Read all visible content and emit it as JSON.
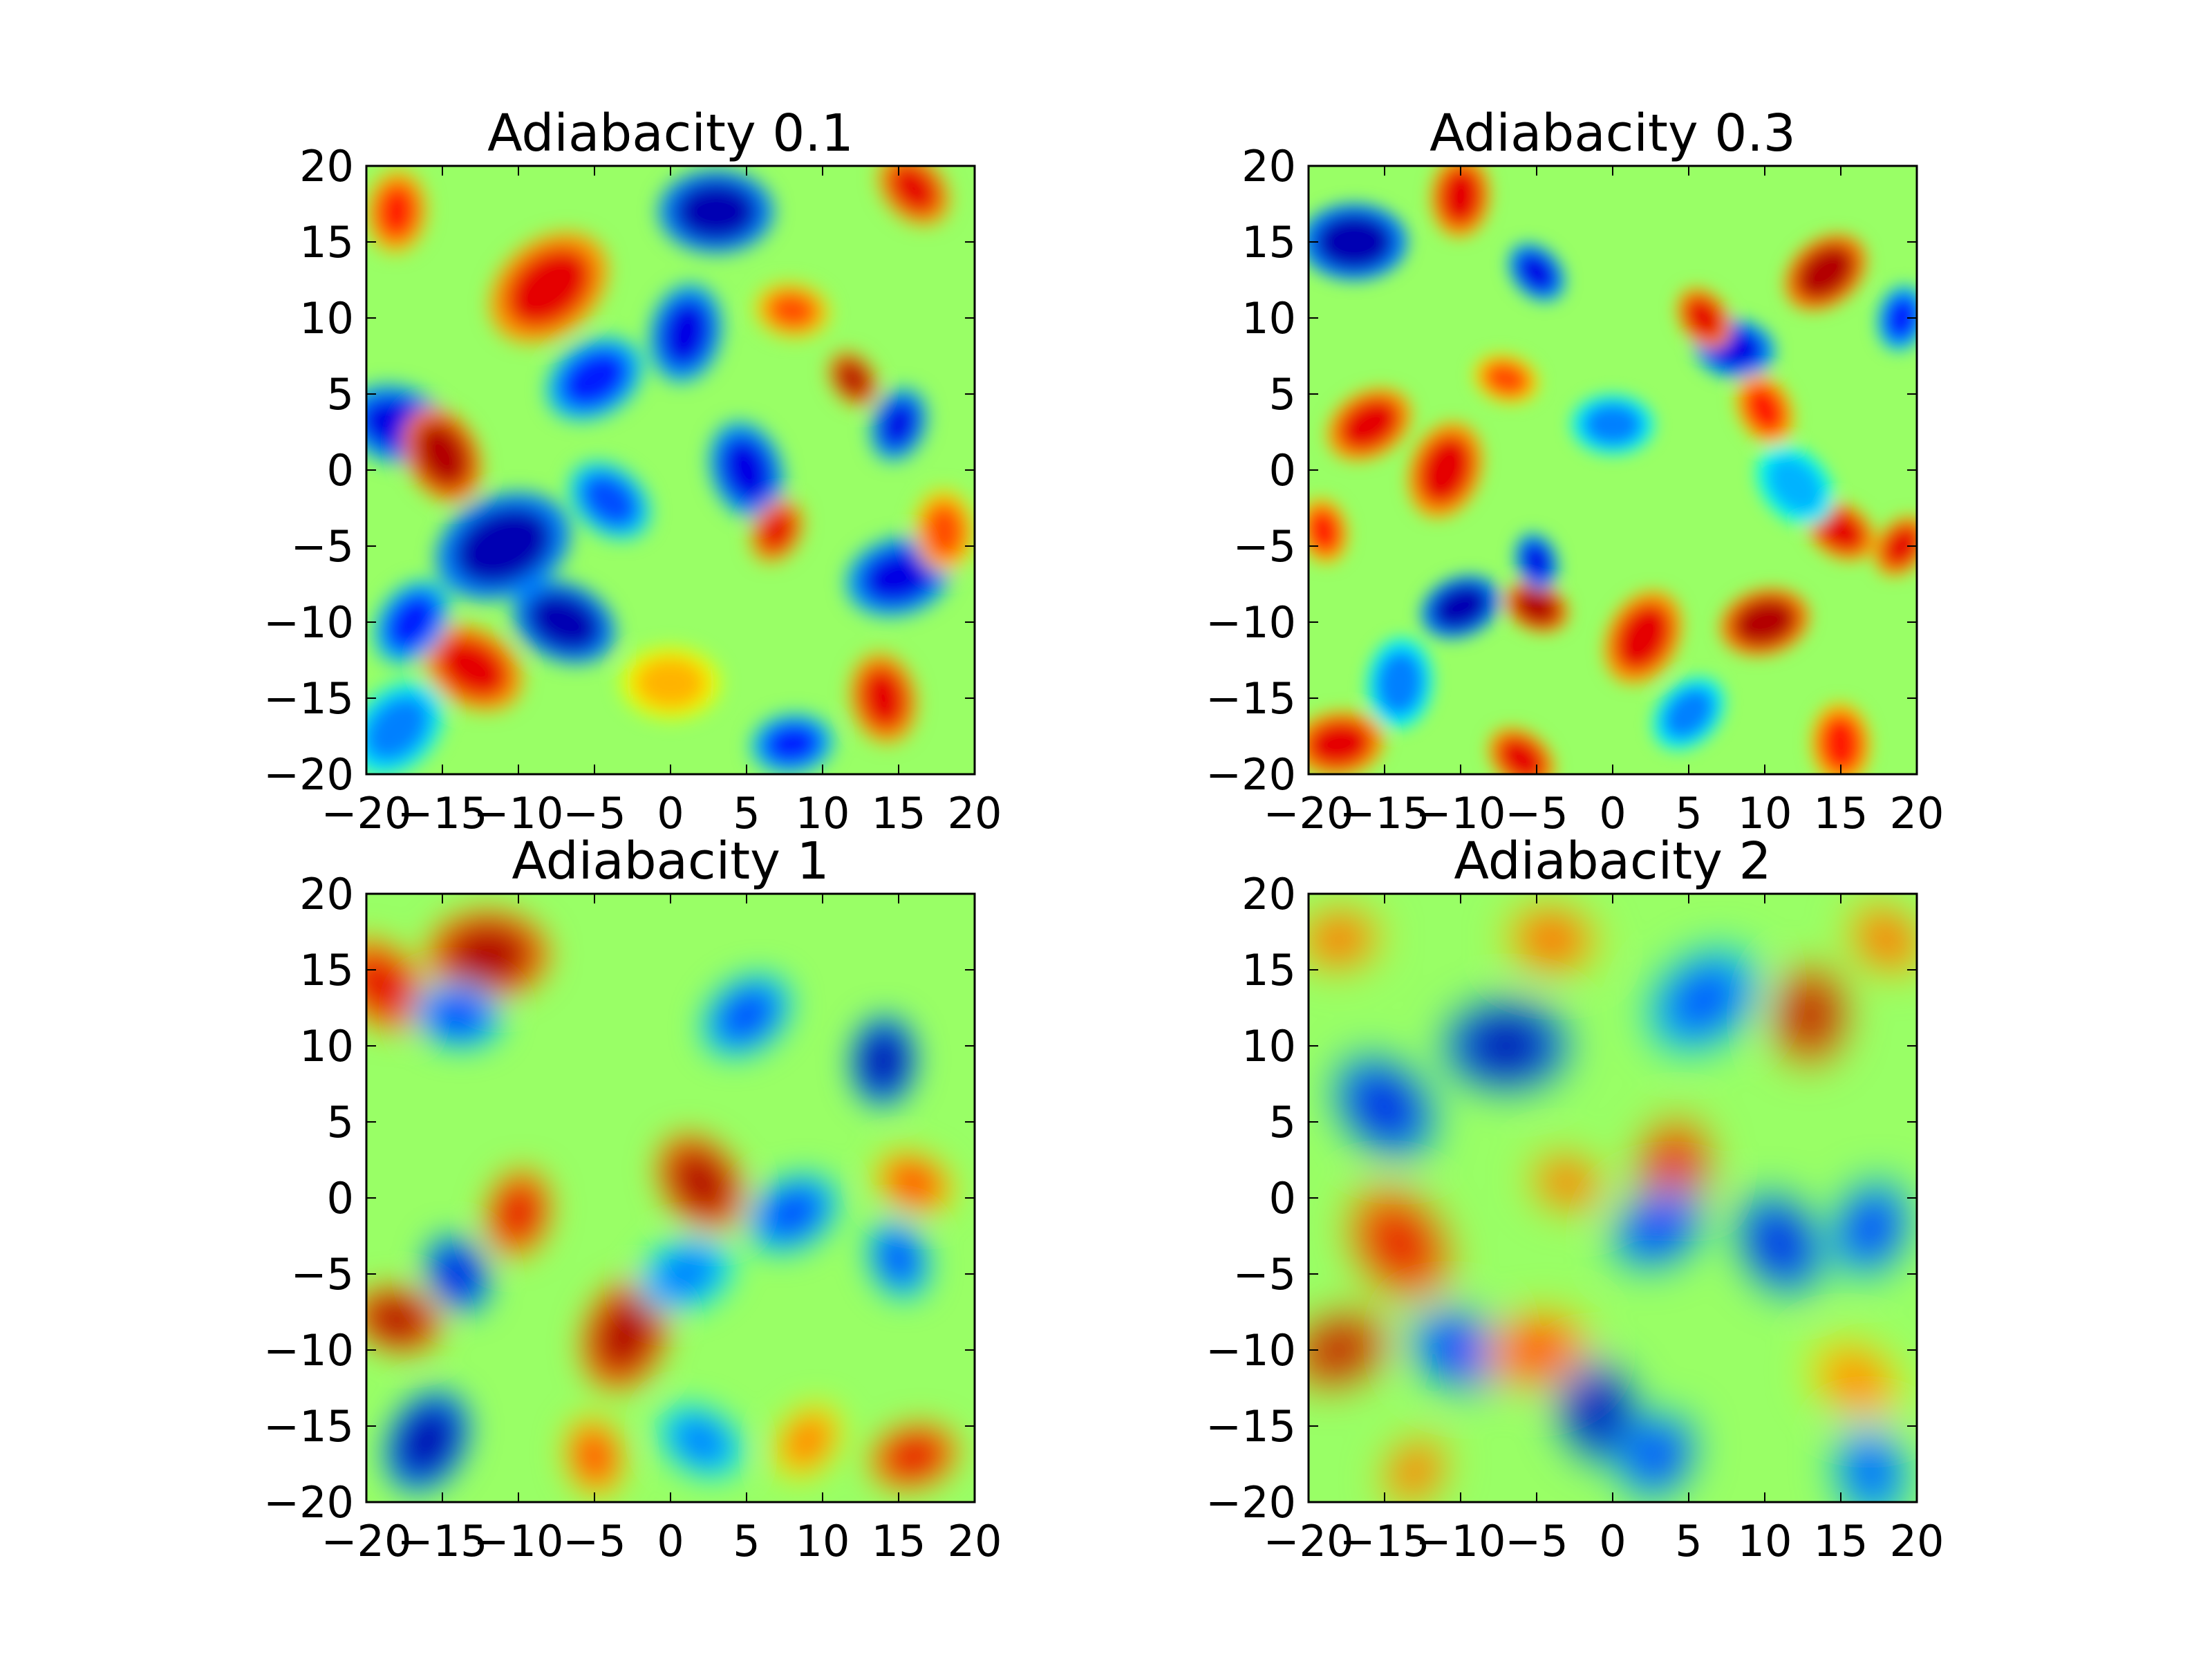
{
  "chart_data": [
    {
      "type": "heatmap",
      "title": "Adiabacity 0.1",
      "xlim": [
        -20,
        20
      ],
      "ylim": [
        -20,
        20
      ],
      "xticks": [
        -20,
        -15,
        -10,
        -5,
        0,
        5,
        10,
        15,
        20
      ],
      "yticks": [
        -20,
        -15,
        -10,
        -5,
        0,
        5,
        10,
        15,
        20
      ],
      "xlabel": "",
      "ylabel": "",
      "colormap": "jet",
      "grid": false,
      "smoothness": "fine filamentary",
      "features": [
        {
          "x": 3,
          "y": 17,
          "v": -0.9,
          "r": 2.8
        },
        {
          "x": 16,
          "y": 18.5,
          "v": 0.8,
          "r": 2.0
        },
        {
          "x": -18,
          "y": 17,
          "v": 0.7,
          "r": 2.0
        },
        {
          "x": -8,
          "y": 12,
          "v": 0.8,
          "r": 3.2
        },
        {
          "x": 8,
          "y": 10.5,
          "v": 0.6,
          "r": 1.8
        },
        {
          "x": 12,
          "y": 6,
          "v": 0.9,
          "r": 1.4
        },
        {
          "x": 1,
          "y": 9,
          "v": -0.8,
          "r": 2.4
        },
        {
          "x": -5,
          "y": 6,
          "v": -0.7,
          "r": 2.5
        },
        {
          "x": -18,
          "y": 3,
          "v": -0.8,
          "r": 2.6
        },
        {
          "x": -15,
          "y": 1,
          "v": 0.9,
          "r": 2.4
        },
        {
          "x": 15,
          "y": 3,
          "v": -0.8,
          "r": 1.8
        },
        {
          "x": -11,
          "y": -5,
          "v": -0.9,
          "r": 3.4
        },
        {
          "x": -7,
          "y": -10,
          "v": -0.9,
          "r": 2.6
        },
        {
          "x": 5,
          "y": 0,
          "v": -0.8,
          "r": 2.4
        },
        {
          "x": 7,
          "y": -4,
          "v": 0.8,
          "r": 1.6
        },
        {
          "x": 15,
          "y": -7,
          "v": -0.8,
          "r": 2.6
        },
        {
          "x": -13,
          "y": -13,
          "v": 0.8,
          "r": 2.6
        },
        {
          "x": 14,
          "y": -15,
          "v": 0.8,
          "r": 2.2
        },
        {
          "x": -17,
          "y": -10,
          "v": -0.7,
          "r": 2.2
        },
        {
          "x": 8,
          "y": -18,
          "v": -0.7,
          "r": 2.0
        },
        {
          "x": -4,
          "y": -2,
          "v": -0.6,
          "r": 2.2
        },
        {
          "x": 18,
          "y": -4,
          "v": 0.6,
          "r": 2.0
        },
        {
          "x": -18,
          "y": -17,
          "v": -0.5,
          "r": 2.6
        },
        {
          "x": 0,
          "y": -14,
          "v": 0.4,
          "r": 2.4
        }
      ]
    },
    {
      "type": "heatmap",
      "title": "Adiabacity 0.3",
      "xlim": [
        -20,
        20
      ],
      "ylim": [
        -20,
        20
      ],
      "xticks": [
        -20,
        -15,
        -10,
        -5,
        0,
        5,
        10,
        15,
        20
      ],
      "yticks": [
        -20,
        -15,
        -10,
        -5,
        0,
        5,
        10,
        15,
        20
      ],
      "xlabel": "",
      "ylabel": "",
      "colormap": "jet",
      "grid": false,
      "smoothness": "fine granular",
      "features": [
        {
          "x": -17,
          "y": 15,
          "v": -0.9,
          "r": 2.6
        },
        {
          "x": -5,
          "y": 13,
          "v": -0.8,
          "r": 1.6
        },
        {
          "x": -10,
          "y": 18,
          "v": 0.8,
          "r": 2.0
        },
        {
          "x": 14,
          "y": 13,
          "v": 0.9,
          "r": 2.2
        },
        {
          "x": 8,
          "y": 8,
          "v": -0.8,
          "r": 2.0
        },
        {
          "x": 6,
          "y": 10,
          "v": 0.8,
          "r": 1.6
        },
        {
          "x": 19,
          "y": 10,
          "v": -0.7,
          "r": 1.6
        },
        {
          "x": -16,
          "y": 3,
          "v": 0.8,
          "r": 2.2
        },
        {
          "x": -7,
          "y": 6,
          "v": 0.6,
          "r": 1.6
        },
        {
          "x": 10,
          "y": 4,
          "v": 0.7,
          "r": 1.8
        },
        {
          "x": -11,
          "y": 0,
          "v": 0.8,
          "r": 2.4
        },
        {
          "x": -10,
          "y": -9,
          "v": -0.9,
          "r": 2.0
        },
        {
          "x": -5,
          "y": -9,
          "v": 0.9,
          "r": 1.6
        },
        {
          "x": -5,
          "y": -6,
          "v": -0.8,
          "r": 1.4
        },
        {
          "x": 2,
          "y": -11,
          "v": 0.8,
          "r": 2.4
        },
        {
          "x": 10,
          "y": -10,
          "v": 0.9,
          "r": 2.2
        },
        {
          "x": 15,
          "y": -4,
          "v": 0.8,
          "r": 1.8
        },
        {
          "x": -19,
          "y": -4,
          "v": 0.7,
          "r": 1.6
        },
        {
          "x": 19,
          "y": -5,
          "v": 0.8,
          "r": 1.6
        },
        {
          "x": -18,
          "y": -18,
          "v": 0.8,
          "r": 2.2
        },
        {
          "x": -6,
          "y": -19,
          "v": 0.8,
          "r": 1.8
        },
        {
          "x": 15,
          "y": -18,
          "v": 0.7,
          "r": 2.0
        },
        {
          "x": 5,
          "y": -16,
          "v": -0.5,
          "r": 2.0
        },
        {
          "x": 0,
          "y": 3,
          "v": -0.5,
          "r": 2.0
        },
        {
          "x": 12,
          "y": -1,
          "v": -0.4,
          "r": 2.2
        },
        {
          "x": -14,
          "y": -14,
          "v": -0.5,
          "r": 2.2
        }
      ]
    },
    {
      "type": "heatmap",
      "title": "Adiabacity 1",
      "xlim": [
        -20,
        20
      ],
      "ylim": [
        -20,
        20
      ],
      "xticks": [
        -20,
        -15,
        -10,
        -5,
        0,
        5,
        10,
        15,
        20
      ],
      "yticks": [
        -20,
        -15,
        -10,
        -5,
        0,
        5,
        10,
        15,
        20
      ],
      "xlabel": "",
      "ylabel": "",
      "colormap": "jet",
      "grid": false,
      "smoothness": "smooth",
      "features": [
        {
          "x": -12,
          "y": 16,
          "v": 0.9,
          "r": 3.0
        },
        {
          "x": -19,
          "y": 14,
          "v": 0.8,
          "r": 2.6
        },
        {
          "x": 14,
          "y": 9,
          "v": -0.9,
          "r": 2.2
        },
        {
          "x": 5,
          "y": 12,
          "v": -0.6,
          "r": 2.4
        },
        {
          "x": -14,
          "y": 12,
          "v": -0.6,
          "r": 2.2
        },
        {
          "x": 2,
          "y": 1,
          "v": 0.9,
          "r": 2.6
        },
        {
          "x": -10,
          "y": -1,
          "v": 0.8,
          "r": 2.2
        },
        {
          "x": 8,
          "y": -1,
          "v": -0.6,
          "r": 2.4
        },
        {
          "x": -18,
          "y": -8,
          "v": 0.9,
          "r": 2.2
        },
        {
          "x": -14,
          "y": -5,
          "v": -0.8,
          "r": 2.0
        },
        {
          "x": -3,
          "y": -9,
          "v": 0.9,
          "r": 2.8
        },
        {
          "x": 1,
          "y": -5,
          "v": -0.5,
          "r": 2.4
        },
        {
          "x": 16,
          "y": 1,
          "v": 0.6,
          "r": 2.0
        },
        {
          "x": 15,
          "y": -4,
          "v": -0.6,
          "r": 2.0
        },
        {
          "x": -16,
          "y": -16,
          "v": -0.9,
          "r": 2.6
        },
        {
          "x": 16,
          "y": -17,
          "v": 0.8,
          "r": 2.2
        },
        {
          "x": 2,
          "y": -16,
          "v": -0.5,
          "r": 2.2
        },
        {
          "x": -5,
          "y": -17,
          "v": 0.6,
          "r": 2.0
        },
        {
          "x": 9,
          "y": -16,
          "v": 0.5,
          "r": 2.0
        }
      ]
    },
    {
      "type": "heatmap",
      "title": "Adiabacity 2",
      "xlim": [
        -20,
        20
      ],
      "ylim": [
        -20,
        20
      ],
      "xticks": [
        -20,
        -15,
        -10,
        -5,
        0,
        5,
        10,
        15,
        20
      ],
      "yticks": [
        -20,
        -15,
        -10,
        -5,
        0,
        5,
        10,
        15,
        20
      ],
      "xlabel": "",
      "ylabel": "",
      "colormap": "jet",
      "grid": false,
      "smoothness": "very smooth",
      "features": [
        {
          "x": -7,
          "y": 10,
          "v": -0.9,
          "r": 3.0
        },
        {
          "x": -15,
          "y": 6,
          "v": -0.8,
          "r": 2.8
        },
        {
          "x": 13,
          "y": 12,
          "v": 0.9,
          "r": 2.4
        },
        {
          "x": 6,
          "y": 13,
          "v": -0.6,
          "r": 3.0
        },
        {
          "x": -4,
          "y": 17,
          "v": 0.6,
          "r": 2.2
        },
        {
          "x": -14,
          "y": -3,
          "v": 0.8,
          "r": 3.0
        },
        {
          "x": 4,
          "y": 2,
          "v": 0.8,
          "r": 2.4
        },
        {
          "x": 3,
          "y": -2,
          "v": -0.7,
          "r": 2.4
        },
        {
          "x": -3,
          "y": 1,
          "v": 0.6,
          "r": 1.8
        },
        {
          "x": 11,
          "y": -3,
          "v": -0.8,
          "r": 2.6
        },
        {
          "x": 17,
          "y": -2,
          "v": -0.7,
          "r": 2.4
        },
        {
          "x": -18,
          "y": -10,
          "v": 0.9,
          "r": 2.4
        },
        {
          "x": -10,
          "y": -10,
          "v": -0.7,
          "r": 2.6
        },
        {
          "x": -1,
          "y": -14,
          "v": -0.9,
          "r": 2.6
        },
        {
          "x": 3,
          "y": -17,
          "v": -0.7,
          "r": 2.2
        },
        {
          "x": -5,
          "y": -10,
          "v": 0.6,
          "r": 2.6
        },
        {
          "x": 16,
          "y": -12,
          "v": 0.5,
          "r": 2.4
        },
        {
          "x": 17,
          "y": -18,
          "v": -0.6,
          "r": 2.4
        },
        {
          "x": -13,
          "y": -18,
          "v": 0.6,
          "r": 1.8
        },
        {
          "x": -18,
          "y": 17,
          "v": 0.6,
          "r": 2.0
        },
        {
          "x": 18,
          "y": 17,
          "v": 0.6,
          "r": 2.0
        }
      ]
    }
  ]
}
